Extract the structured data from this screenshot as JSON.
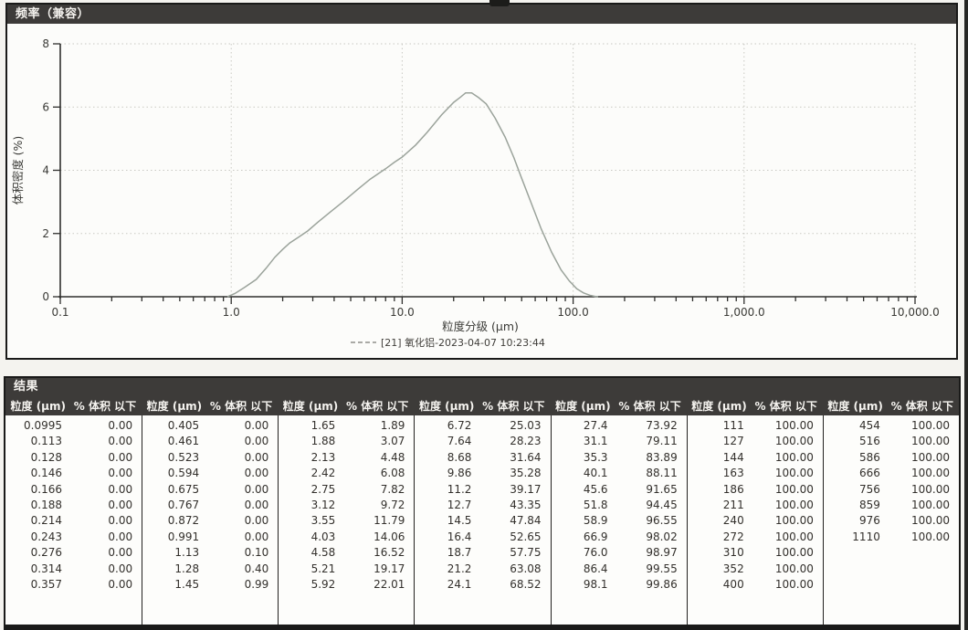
{
  "frequency_panel": {
    "title": "频率（兼容）"
  },
  "chart_data": {
    "type": "line",
    "title": "频率（兼容）",
    "xlabel": "粒度分级 (µm)",
    "ylabel": "体积密度 (%)",
    "x_scale": "log",
    "xlim": [
      0.1,
      10000
    ],
    "ylim": [
      0,
      8
    ],
    "x_tick_values": [
      0.1,
      1,
      10,
      100,
      1000,
      10000
    ],
    "x_tick_labels": [
      "0.1",
      "1.0",
      "10.0",
      "100.0",
      "1,000.0",
      "10,000.0"
    ],
    "y_tick_values": [
      0,
      2,
      4,
      6,
      8
    ],
    "y_tick_labels": [
      "0",
      "2",
      "4",
      "6",
      "8"
    ],
    "grid": "dotted",
    "legend_position": "bottom-center",
    "series": [
      {
        "name": "[21] 氧化铝-2023-04-07 10:23:44",
        "color": "#9ba39b",
        "points": [
          [
            0.95,
            0
          ],
          [
            1.05,
            0.1
          ],
          [
            1.2,
            0.3
          ],
          [
            1.4,
            0.55
          ],
          [
            1.6,
            0.9
          ],
          [
            1.8,
            1.25
          ],
          [
            2.0,
            1.5
          ],
          [
            2.2,
            1.7
          ],
          [
            2.5,
            1.9
          ],
          [
            2.8,
            2.08
          ],
          [
            3.2,
            2.35
          ],
          [
            3.8,
            2.68
          ],
          [
            4.5,
            3.0
          ],
          [
            5.5,
            3.4
          ],
          [
            6.5,
            3.72
          ],
          [
            8.0,
            4.05
          ],
          [
            9.0,
            4.25
          ],
          [
            10,
            4.42
          ],
          [
            12,
            4.8
          ],
          [
            14,
            5.2
          ],
          [
            17,
            5.75
          ],
          [
            20,
            6.15
          ],
          [
            22,
            6.32
          ],
          [
            23.5,
            6.45
          ],
          [
            25.5,
            6.45
          ],
          [
            28,
            6.3
          ],
          [
            31,
            6.1
          ],
          [
            35,
            5.65
          ],
          [
            40,
            5.05
          ],
          [
            45,
            4.4
          ],
          [
            50,
            3.75
          ],
          [
            57,
            2.95
          ],
          [
            65,
            2.15
          ],
          [
            75,
            1.4
          ],
          [
            85,
            0.85
          ],
          [
            95,
            0.5
          ],
          [
            105,
            0.25
          ],
          [
            115,
            0.12
          ],
          [
            125,
            0.05
          ],
          [
            135,
            0.01
          ],
          [
            140,
            0
          ]
        ]
      }
    ]
  },
  "results_table": {
    "title": "结果",
    "column_headers": {
      "size": "粒度 (µm)",
      "pct": "% 体积 以下"
    },
    "groups": [
      [
        [
          "0.0995",
          "0.00"
        ],
        [
          "0.113",
          "0.00"
        ],
        [
          "0.128",
          "0.00"
        ],
        [
          "0.146",
          "0.00"
        ],
        [
          "0.166",
          "0.00"
        ],
        [
          "0.188",
          "0.00"
        ],
        [
          "0.214",
          "0.00"
        ],
        [
          "0.243",
          "0.00"
        ],
        [
          "0.276",
          "0.00"
        ],
        [
          "0.314",
          "0.00"
        ],
        [
          "0.357",
          "0.00"
        ]
      ],
      [
        [
          "0.405",
          "0.00"
        ],
        [
          "0.461",
          "0.00"
        ],
        [
          "0.523",
          "0.00"
        ],
        [
          "0.594",
          "0.00"
        ],
        [
          "0.675",
          "0.00"
        ],
        [
          "0.767",
          "0.00"
        ],
        [
          "0.872",
          "0.00"
        ],
        [
          "0.991",
          "0.00"
        ],
        [
          "1.13",
          "0.10"
        ],
        [
          "1.28",
          "0.40"
        ],
        [
          "1.45",
          "0.99"
        ]
      ],
      [
        [
          "1.65",
          "1.89"
        ],
        [
          "1.88",
          "3.07"
        ],
        [
          "2.13",
          "4.48"
        ],
        [
          "2.42",
          "6.08"
        ],
        [
          "2.75",
          "7.82"
        ],
        [
          "3.12",
          "9.72"
        ],
        [
          "3.55",
          "11.79"
        ],
        [
          "4.03",
          "14.06"
        ],
        [
          "4.58",
          "16.52"
        ],
        [
          "5.21",
          "19.17"
        ],
        [
          "5.92",
          "22.01"
        ]
      ],
      [
        [
          "6.72",
          "25.03"
        ],
        [
          "7.64",
          "28.23"
        ],
        [
          "8.68",
          "31.64"
        ],
        [
          "9.86",
          "35.28"
        ],
        [
          "11.2",
          "39.17"
        ],
        [
          "12.7",
          "43.35"
        ],
        [
          "14.5",
          "47.84"
        ],
        [
          "16.4",
          "52.65"
        ],
        [
          "18.7",
          "57.75"
        ],
        [
          "21.2",
          "63.08"
        ],
        [
          "24.1",
          "68.52"
        ]
      ],
      [
        [
          "27.4",
          "73.92"
        ],
        [
          "31.1",
          "79.11"
        ],
        [
          "35.3",
          "83.89"
        ],
        [
          "40.1",
          "88.11"
        ],
        [
          "45.6",
          "91.65"
        ],
        [
          "51.8",
          "94.45"
        ],
        [
          "58.9",
          "96.55"
        ],
        [
          "66.9",
          "98.02"
        ],
        [
          "76.0",
          "98.97"
        ],
        [
          "86.4",
          "99.55"
        ],
        [
          "98.1",
          "99.86"
        ]
      ],
      [
        [
          "111",
          "100.00"
        ],
        [
          "127",
          "100.00"
        ],
        [
          "144",
          "100.00"
        ],
        [
          "163",
          "100.00"
        ],
        [
          "186",
          "100.00"
        ],
        [
          "211",
          "100.00"
        ],
        [
          "240",
          "100.00"
        ],
        [
          "272",
          "100.00"
        ],
        [
          "310",
          "100.00"
        ],
        [
          "352",
          "100.00"
        ],
        [
          "400",
          "100.00"
        ]
      ],
      [
        [
          "454",
          "100.00"
        ],
        [
          "516",
          "100.00"
        ],
        [
          "586",
          "100.00"
        ],
        [
          "666",
          "100.00"
        ],
        [
          "756",
          "100.00"
        ],
        [
          "859",
          "100.00"
        ],
        [
          "976",
          "100.00"
        ],
        [
          "1110",
          "100.00"
        ]
      ]
    ]
  }
}
